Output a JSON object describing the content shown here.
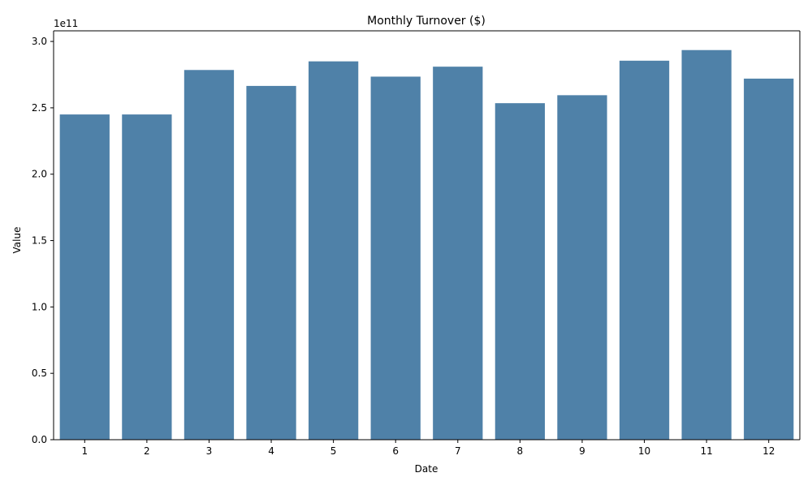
{
  "chart_data": {
    "type": "bar",
    "title": "Monthly Turnover ($)",
    "xlabel": "Date",
    "ylabel": "Value",
    "categories": [
      "1",
      "2",
      "3",
      "4",
      "5",
      "6",
      "7",
      "8",
      "9",
      "10",
      "11",
      "12"
    ],
    "values": [
      245000000000.0,
      245000000000.0,
      278500000000.0,
      266500000000.0,
      285000000000.0,
      273500000000.0,
      281000000000.0,
      253500000000.0,
      259500000000.0,
      285500000000.0,
      293500000000.0,
      272000000000.0
    ],
    "ylim": [
      0,
      308000000000.0
    ],
    "yticks": [
      0,
      50000000000.0,
      100000000000.0,
      150000000000.0,
      200000000000.0,
      250000000000.0,
      300000000000.0
    ],
    "ytick_labels": [
      "0.0",
      "0.5",
      "1.0",
      "1.5",
      "2.0",
      "2.5",
      "3.0"
    ],
    "y_offset_label": "1e11",
    "grid": false,
    "bar_color": "#4f81a8"
  }
}
